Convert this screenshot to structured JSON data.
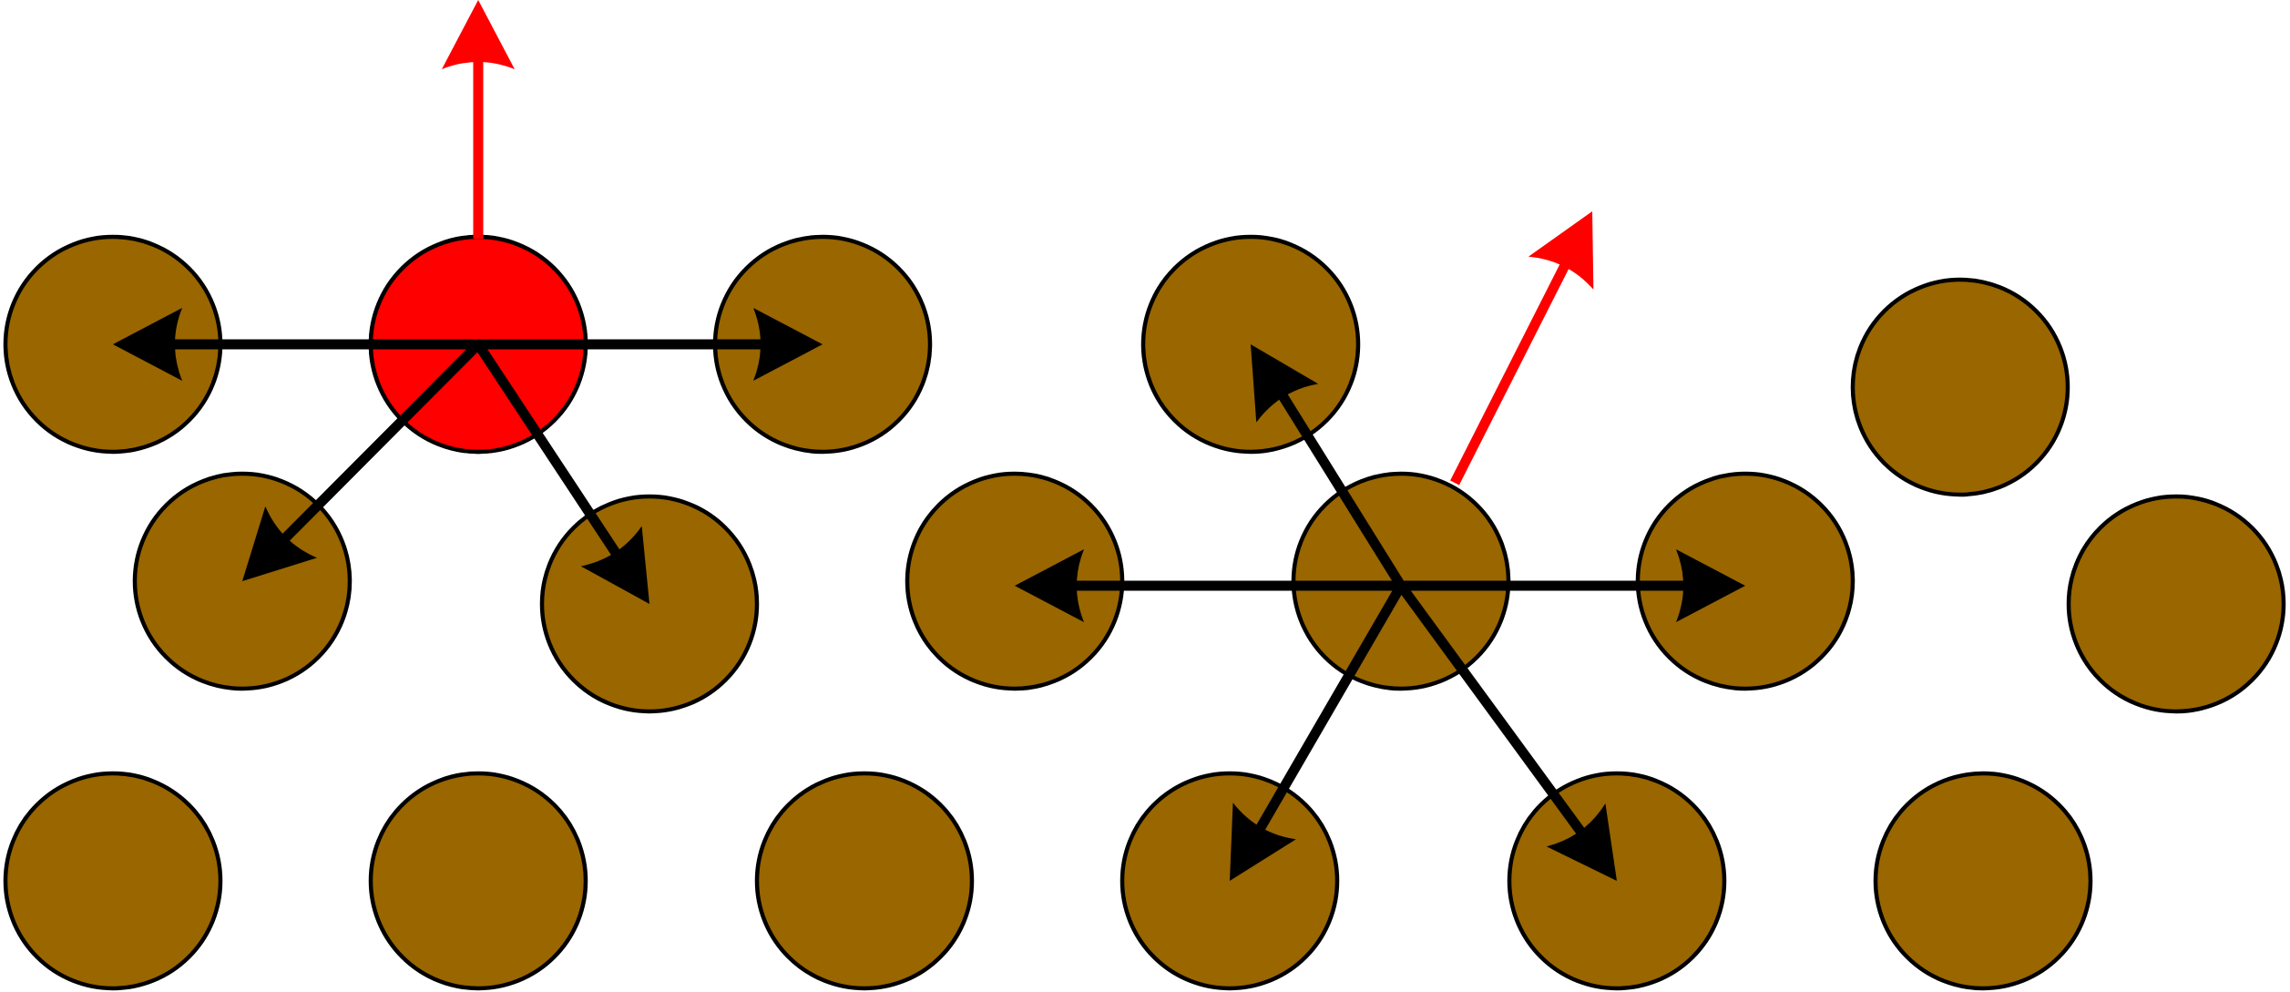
{
  "colors": {
    "background": "#ffffff",
    "neighbor_atom": "#996600",
    "central_atom": "#ff0000",
    "bond_vector": "#000000",
    "net_vector": "#ff0000",
    "outline": "#000000"
  },
  "atom_kinds": [
    "neighbor",
    "neighbor",
    "central",
    "neighbor",
    "neighbor",
    "neighbor",
    "neighbor",
    "neighbor",
    "neighbor",
    "neighbor",
    "neighbor",
    "neighbor",
    "central",
    "neighbor",
    "neighbor",
    "neighbor",
    "neighbor",
    "neighbor"
  ],
  "vector_kinds": [
    "bond",
    "bond",
    "bond",
    "bond",
    "net",
    "bond",
    "bond",
    "bond",
    "bond",
    "bond",
    "net"
  ],
  "icons": {
    "atom": "filled-circle",
    "vector": "arrow"
  }
}
